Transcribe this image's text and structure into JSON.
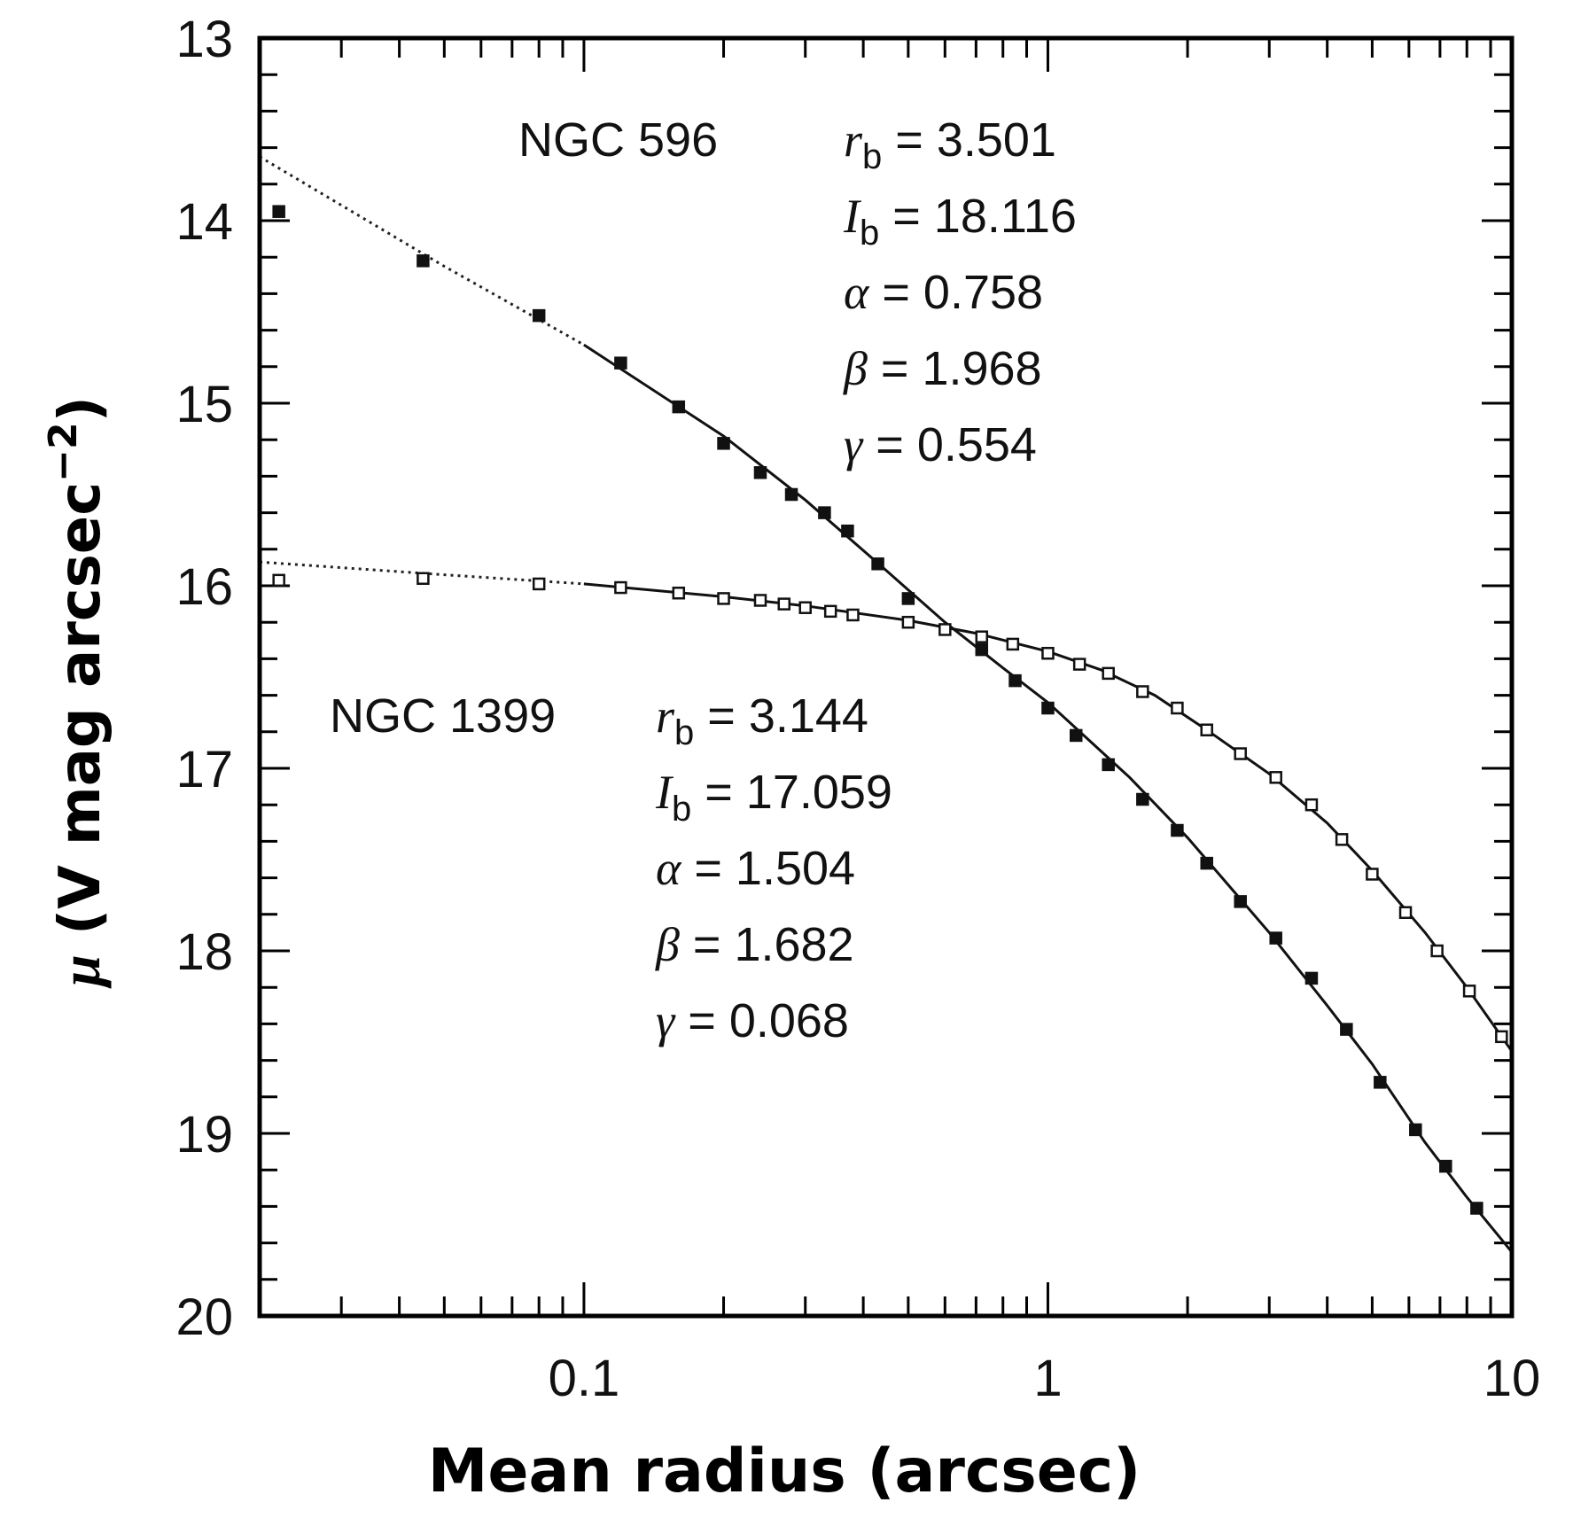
{
  "chart_data": {
    "type": "scatter",
    "xlabel": "Mean radius (arcsec)",
    "ylabel_symbol": "μ",
    "ylabel_text": " (V mag arcsec",
    "ylabel_exp": "−2",
    "ylabel_close": ")",
    "x_scale": "log",
    "xlim": [
      0.02,
      10
    ],
    "ylim": [
      20,
      13
    ],
    "x_ticks": [
      {
        "value": 0.1,
        "label": "0.1"
      },
      {
        "value": 1,
        "label": "1"
      },
      {
        "value": 10,
        "label": "10"
      }
    ],
    "y_ticks": [
      {
        "value": 13,
        "label": "13"
      },
      {
        "value": 14,
        "label": "14"
      },
      {
        "value": 15,
        "label": "15"
      },
      {
        "value": 16,
        "label": "16"
      },
      {
        "value": 17,
        "label": "17"
      },
      {
        "value": 18,
        "label": "18"
      },
      {
        "value": 19,
        "label": "19"
      },
      {
        "value": 20,
        "label": "20"
      }
    ],
    "grid": false,
    "series": [
      {
        "name": "NGC 596",
        "marker": "filled-square",
        "points": [
          {
            "x": 0.022,
            "y": 13.95
          },
          {
            "x": 0.045,
            "y": 14.22
          },
          {
            "x": 0.08,
            "y": 14.52
          },
          {
            "x": 0.12,
            "y": 14.78
          },
          {
            "x": 0.16,
            "y": 15.02
          },
          {
            "x": 0.2,
            "y": 15.22
          },
          {
            "x": 0.24,
            "y": 15.38
          },
          {
            "x": 0.28,
            "y": 15.5
          },
          {
            "x": 0.33,
            "y": 15.6
          },
          {
            "x": 0.37,
            "y": 15.7
          },
          {
            "x": 0.43,
            "y": 15.88
          },
          {
            "x": 0.5,
            "y": 16.07
          },
          {
            "x": 0.72,
            "y": 16.35
          },
          {
            "x": 0.85,
            "y": 16.52
          },
          {
            "x": 1.0,
            "y": 16.67
          },
          {
            "x": 1.15,
            "y": 16.82
          },
          {
            "x": 1.35,
            "y": 16.98
          },
          {
            "x": 1.6,
            "y": 17.17
          },
          {
            "x": 1.9,
            "y": 17.34
          },
          {
            "x": 2.2,
            "y": 17.52
          },
          {
            "x": 2.6,
            "y": 17.73
          },
          {
            "x": 3.1,
            "y": 17.93
          },
          {
            "x": 3.7,
            "y": 18.15
          },
          {
            "x": 4.4,
            "y": 18.43
          },
          {
            "x": 5.2,
            "y": 18.72
          },
          {
            "x": 6.2,
            "y": 18.98
          },
          {
            "x": 7.2,
            "y": 19.18
          },
          {
            "x": 8.4,
            "y": 19.41
          }
        ],
        "fit": [
          {
            "x": 0.02,
            "y": 13.65
          },
          {
            "x": 0.05,
            "y": 14.25
          },
          {
            "x": 0.1,
            "y": 14.68
          },
          {
            "x": 0.2,
            "y": 15.18
          },
          {
            "x": 0.3,
            "y": 15.53
          },
          {
            "x": 0.45,
            "y": 15.92
          },
          {
            "x": 0.6,
            "y": 16.2
          },
          {
            "x": 0.8,
            "y": 16.45
          },
          {
            "x": 1.0,
            "y": 16.64
          },
          {
            "x": 1.5,
            "y": 17.05
          },
          {
            "x": 2.0,
            "y": 17.38
          },
          {
            "x": 3.0,
            "y": 17.9
          },
          {
            "x": 4.0,
            "y": 18.3
          },
          {
            "x": 5.0,
            "y": 18.62
          },
          {
            "x": 6.5,
            "y": 19.05
          },
          {
            "x": 8.0,
            "y": 19.35
          },
          {
            "x": 10,
            "y": 19.65
          }
        ],
        "annotation": {
          "name": "NGC 596",
          "rb": "3.501",
          "Ib": "18.116",
          "alpha": "0.758",
          "beta": "1.968",
          "gamma": "0.554"
        }
      },
      {
        "name": "NGC 1399",
        "marker": "open-square",
        "points": [
          {
            "x": 0.022,
            "y": 15.97
          },
          {
            "x": 0.045,
            "y": 15.96
          },
          {
            "x": 0.08,
            "y": 15.99
          },
          {
            "x": 0.12,
            "y": 16.01
          },
          {
            "x": 0.16,
            "y": 16.04
          },
          {
            "x": 0.2,
            "y": 16.07
          },
          {
            "x": 0.24,
            "y": 16.08
          },
          {
            "x": 0.27,
            "y": 16.1
          },
          {
            "x": 0.3,
            "y": 16.12
          },
          {
            "x": 0.34,
            "y": 16.14
          },
          {
            "x": 0.38,
            "y": 16.16
          },
          {
            "x": 0.5,
            "y": 16.2
          },
          {
            "x": 0.6,
            "y": 16.24
          },
          {
            "x": 0.72,
            "y": 16.28
          },
          {
            "x": 0.84,
            "y": 16.32
          },
          {
            "x": 1.0,
            "y": 16.37
          },
          {
            "x": 1.17,
            "y": 16.43
          },
          {
            "x": 1.35,
            "y": 16.48
          },
          {
            "x": 1.6,
            "y": 16.58
          },
          {
            "x": 1.9,
            "y": 16.67
          },
          {
            "x": 2.2,
            "y": 16.79
          },
          {
            "x": 2.6,
            "y": 16.92
          },
          {
            "x": 3.1,
            "y": 17.05
          },
          {
            "x": 3.7,
            "y": 17.2
          },
          {
            "x": 4.3,
            "y": 17.39
          },
          {
            "x": 5.0,
            "y": 17.58
          },
          {
            "x": 5.9,
            "y": 17.79
          },
          {
            "x": 6.9,
            "y": 18.0
          },
          {
            "x": 8.1,
            "y": 18.22
          },
          {
            "x": 9.5,
            "y": 18.47
          }
        ],
        "fit": [
          {
            "x": 0.02,
            "y": 15.87
          },
          {
            "x": 0.05,
            "y": 15.94
          },
          {
            "x": 0.1,
            "y": 15.99
          },
          {
            "x": 0.2,
            "y": 16.06
          },
          {
            "x": 0.3,
            "y": 16.11
          },
          {
            "x": 0.5,
            "y": 16.19
          },
          {
            "x": 0.7,
            "y": 16.26
          },
          {
            "x": 1.0,
            "y": 16.36
          },
          {
            "x": 1.3,
            "y": 16.46
          },
          {
            "x": 1.7,
            "y": 16.6
          },
          {
            "x": 2.2,
            "y": 16.79
          },
          {
            "x": 3.0,
            "y": 17.03
          },
          {
            "x": 4.0,
            "y": 17.3
          },
          {
            "x": 5.0,
            "y": 17.56
          },
          {
            "x": 6.5,
            "y": 17.9
          },
          {
            "x": 8.0,
            "y": 18.2
          },
          {
            "x": 10,
            "y": 18.55
          }
        ],
        "annotation": {
          "name": "NGC 1399",
          "rb": "3.144",
          "Ib": "17.059",
          "alpha": "1.504",
          "beta": "1.682",
          "gamma": "0.068"
        }
      }
    ]
  }
}
